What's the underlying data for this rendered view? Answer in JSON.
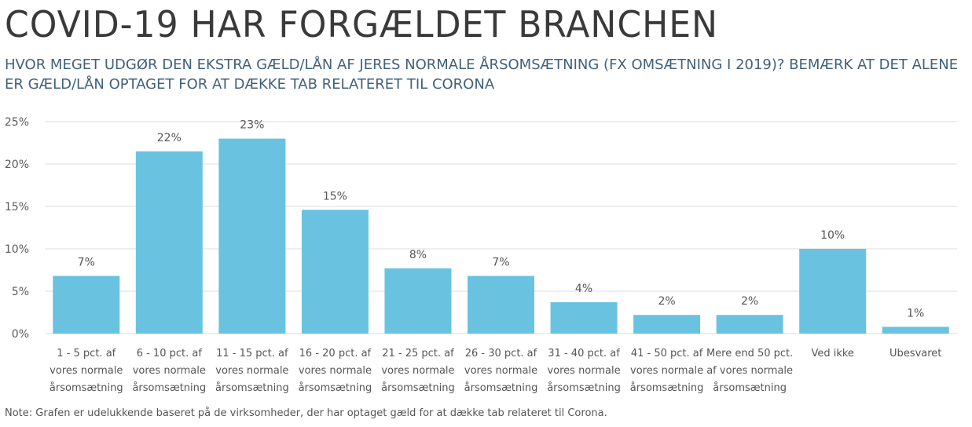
{
  "title": "COVID-19 HAR FORGÆLDET BRANCHEN",
  "subtitle": "HVOR MEGET UDGØR DEN EKSTRA GÆLD/LÅN AF JERES NORMALE ÅRSOMSÆTNING (FX OMSÆTNING I 2019)? BEMÆRK AT DET ALENE ER GÆLD/LÅN OPTAGET FOR AT DÆKKE TAB RELATERET TIL CORONA",
  "note": "Note: Grafen er udelukkende baseret på de virksomheder, der har optaget gæld for at dække tab relateret til Corona.",
  "colors": {
    "bar": "#69c3e0",
    "grid": "#dcdcdc",
    "title": "#3a3a3a",
    "subtitle": "#41607a"
  },
  "chart_data": {
    "type": "bar",
    "categories": [
      [
        "1 - 5 pct. af",
        "vores normale",
        "årsomsætning"
      ],
      [
        "6 - 10 pct. af",
        "vores normale",
        "årsomsætning"
      ],
      [
        "11 - 15 pct. af",
        "vores normale",
        "årsomsætning"
      ],
      [
        "16 - 20 pct. af",
        "vores normale",
        "årsomsætning"
      ],
      [
        "21 - 25 pct. af",
        "vores normale",
        "årsomsætning"
      ],
      [
        "26 - 30 pct. af",
        "vores normale",
        "årsomsætning"
      ],
      [
        "31 - 40 pct. af",
        "vores normale",
        "årsomsætning"
      ],
      [
        "41 - 50 pct. af",
        "vores normale",
        "årsomsætning"
      ],
      [
        "Mere end 50 pct.",
        "af vores normale",
        "årsomsætning"
      ],
      [
        "Ved ikke"
      ],
      [
        "Ubesvaret"
      ]
    ],
    "values": [
      6.8,
      21.5,
      23.0,
      14.6,
      7.7,
      6.8,
      3.7,
      2.2,
      2.2,
      10.0,
      0.8
    ],
    "data_labels": [
      "7%",
      "22%",
      "23%",
      "15%",
      "8%",
      "7%",
      "4%",
      "2%",
      "2%",
      "10%",
      "1%"
    ],
    "yticks": [
      0,
      5,
      10,
      15,
      20,
      25
    ],
    "ytick_labels": [
      "0%",
      "5%",
      "10%",
      "15%",
      "20%",
      "25%"
    ],
    "ylim": [
      0,
      25
    ],
    "grid": true,
    "legend": false
  }
}
